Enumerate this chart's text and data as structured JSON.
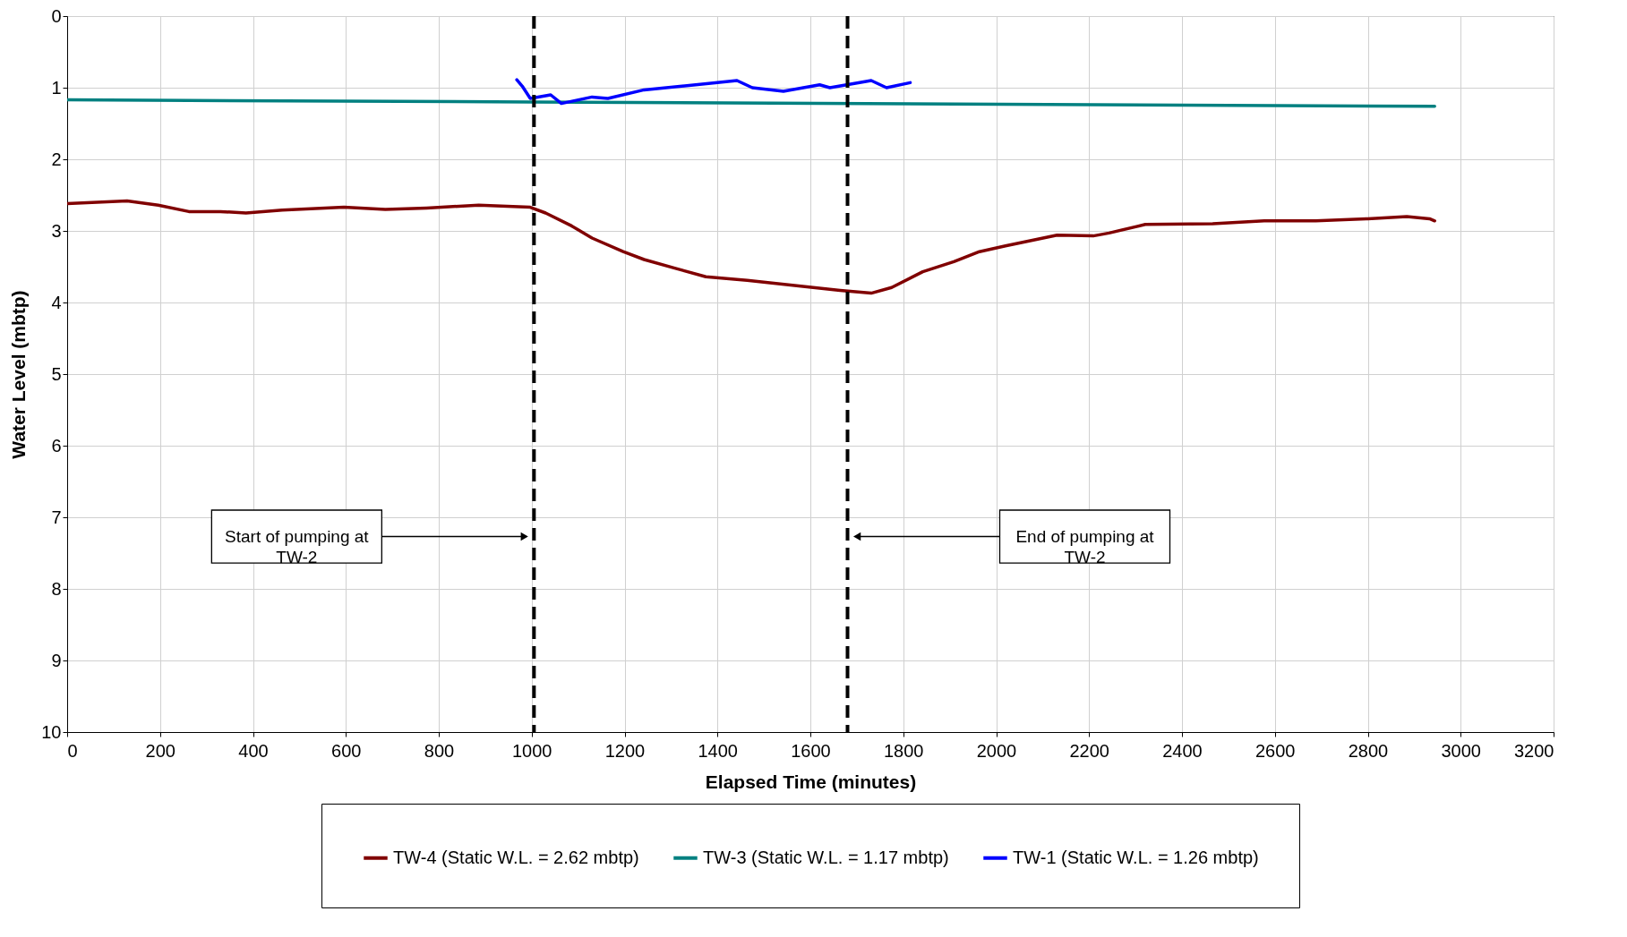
{
  "chart_data": {
    "type": "line",
    "xlabel": "Elapsed Time (minutes)",
    "ylabel": "Water Level (mbtp)",
    "xlim": [
      0,
      3200
    ],
    "xticks": [
      0,
      200,
      400,
      600,
      800,
      1000,
      1200,
      1400,
      1600,
      1800,
      2000,
      2200,
      2400,
      2600,
      2800,
      3000,
      3200
    ],
    "ylim": [
      10,
      0
    ],
    "yticks": [
      0,
      1,
      2,
      3,
      4,
      5,
      6,
      7,
      8,
      9,
      10
    ],
    "grid": true,
    "legend": "bottom",
    "marker": "none",
    "line_style": "solid",
    "series": [
      {
        "name": "TW-4 (Static W.L. = 2.62 mbtp)",
        "color": "#800000",
        "x": [
          0,
          129,
          196,
          262,
          330,
          385,
          463,
          596,
          685,
          774,
          886,
          997,
          1030,
          1086,
          1130,
          1197,
          1242,
          1308,
          1375,
          1464,
          1575,
          1664,
          1731,
          1775,
          1842,
          1909,
          1964,
          2020,
          2131,
          2209,
          2243,
          2321,
          2466,
          2577,
          2688,
          2800,
          2884,
          2933,
          2944
        ],
        "values": [
          2.62,
          2.58,
          2.64,
          2.73,
          2.73,
          2.75,
          2.71,
          2.67,
          2.7,
          2.68,
          2.64,
          2.67,
          2.75,
          2.93,
          3.1,
          3.29,
          3.4,
          3.52,
          3.64,
          3.69,
          3.77,
          3.83,
          3.87,
          3.79,
          3.57,
          3.43,
          3.29,
          3.21,
          3.06,
          3.07,
          3.03,
          2.91,
          2.9,
          2.86,
          2.86,
          2.83,
          2.8,
          2.83,
          2.86
        ]
      },
      {
        "name": "TW-3 (Static W.L. = 1.17 mbtp)",
        "color": "#008080",
        "x": [
          0,
          1000,
          2944
        ],
        "values": [
          1.17,
          1.2,
          1.26
        ]
      },
      {
        "name": "TW-1 (Static W.L. = 1.26 mbtp)",
        "color": "#0000ff",
        "x": [
          968,
          981,
          997,
          1041,
          1064,
          1130,
          1164,
          1242,
          1353,
          1442,
          1475,
          1542,
          1620,
          1642,
          1731,
          1764,
          1815
        ],
        "values": [
          0.89,
          0.99,
          1.15,
          1.1,
          1.22,
          1.13,
          1.15,
          1.03,
          0.96,
          0.9,
          1.0,
          1.05,
          0.96,
          1.0,
          0.9,
          1.0,
          0.93
        ]
      }
    ],
    "ref_lines": [
      {
        "axis": "x",
        "value": 1005,
        "color": "#000000",
        "line_style": "dashed"
      },
      {
        "axis": "x",
        "value": 1680,
        "color": "#000000",
        "line_style": "dashed"
      }
    ],
    "annotations": [
      "Start of pumping at TW-2",
      "End of pumping at TW-2"
    ]
  }
}
